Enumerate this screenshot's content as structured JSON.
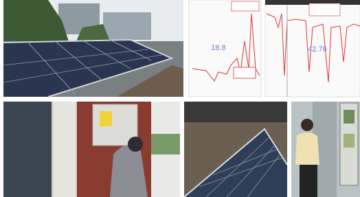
{
  "charts": [
    {
      "label": "18.8"
    },
    {
      "label": "42.76"
    }
  ]
}
